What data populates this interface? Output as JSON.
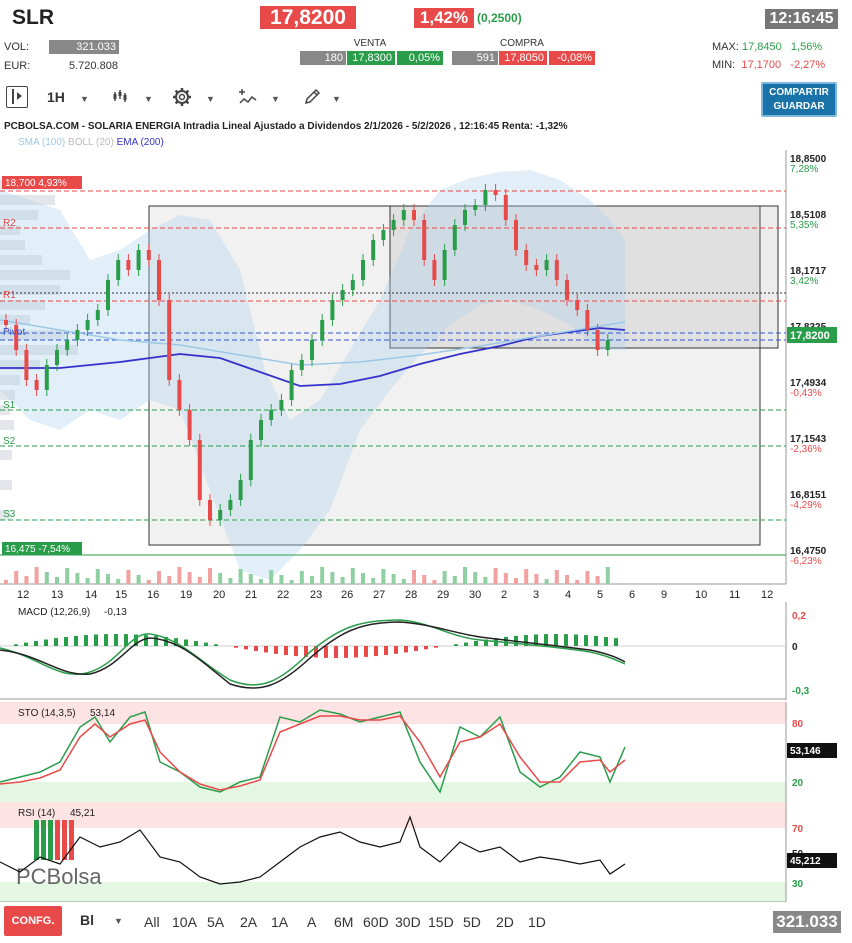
{
  "header": {
    "symbol": "SLR",
    "price": "17,8200",
    "change_pct": "1,42%",
    "change_abs": "(0,2500)",
    "time": "12:16:45",
    "vol_label": "VOL:",
    "vol_value": "321.033",
    "eur_label": "EUR:",
    "eur_value": "5.720.808",
    "venta_label": "VENTA",
    "venta_qty": "180",
    "venta_price": "17,8300",
    "venta_pct": "0,05%",
    "compra_label": "COMPRA",
    "compra_qty": "591",
    "compra_price": "17,8050",
    "compra_pct": "-0,08%",
    "max_label": "MAX:",
    "max_value": "17,8450",
    "max_pct": "1,56%",
    "min_label": "MIN:",
    "min_value": "17,1700",
    "min_pct": "-2,27%"
  },
  "toolbar": {
    "interval": "1H",
    "save_line1": "COMPARTIR",
    "save_line2": "GUARDAR",
    "icons": [
      "panel-toggle-icon",
      "candles-icon",
      "gear-icon",
      "indicators-icon",
      "pencil-icon"
    ]
  },
  "chart": {
    "title": "PCBOLSA.COM - SOLARIA ENERGIA Intradia Lineal Ajustado a Dividendos 2/1/2026 - 5/2/2026 , 12:16:45 Renta: -1,32%",
    "legend": [
      {
        "text": "SMA (100)",
        "color": "#9cc8e8"
      },
      {
        "text": "BOLL (20)",
        "color": "#bbbbbb"
      },
      {
        "text": "EMA (200)",
        "color": "#3333cc"
      }
    ],
    "price_axis": [
      {
        "price": "18,8500",
        "pct": "7,28%",
        "pct_color": "#2a9d4b"
      },
      {
        "price": "18,5108",
        "pct": "5,35%",
        "pct_color": "#2a9d4b"
      },
      {
        "price": "18,1717",
        "pct": "3,42%",
        "pct_color": "#2a9d4b"
      },
      {
        "price": "17,8325",
        "pct": "",
        "pct_color": "#2a9d4b"
      },
      {
        "price": "17,4934",
        "pct": "-0,43%",
        "pct_color": "#e84a4a"
      },
      {
        "price": "17,1543",
        "pct": "-2,36%",
        "pct_color": "#e84a4a"
      },
      {
        "price": "16,8151",
        "pct": "-4,29%",
        "pct_color": "#e84a4a"
      },
      {
        "price": "16,4750",
        "pct": "-6,23%",
        "pct_color": "#e84a4a"
      }
    ],
    "current_price_tag": "17,8200",
    "high_tag": "18,700  4,93%",
    "low_tag": "16,475  -7,54%",
    "levels": [
      "R2",
      "R1",
      "Pivot",
      "S1",
      "S2",
      "S3"
    ],
    "x_ticks": [
      "12",
      "13",
      "14",
      "15",
      "16",
      "19",
      "20",
      "21",
      "22",
      "23",
      "26",
      "27",
      "28",
      "29",
      "30",
      "2",
      "3",
      "4",
      "5",
      "6",
      "9",
      "10",
      "11",
      "12"
    ]
  },
  "macd": {
    "label": "MACD (12,26,9)",
    "value": "-0,13",
    "axis": [
      "0,2",
      "0",
      "-0,3"
    ]
  },
  "sto": {
    "label": "STO (14,3,5)",
    "value": "53,14",
    "tag": "53,146",
    "axis": [
      "80",
      "20"
    ]
  },
  "rsi": {
    "label": "RSI (14)",
    "value": "45,21",
    "tag": "45,212",
    "axis": [
      "70",
      "50",
      "30"
    ],
    "watermark": "PCBolsa"
  },
  "bottom": {
    "config": "CONFG.",
    "mode": "Bl",
    "ranges": [
      "All",
      "10A",
      "5A",
      "2A",
      "1A",
      "A",
      "6M",
      "60D",
      "30D",
      "15D",
      "5D",
      "2D",
      "1D"
    ],
    "vol_total": "321.033"
  }
}
